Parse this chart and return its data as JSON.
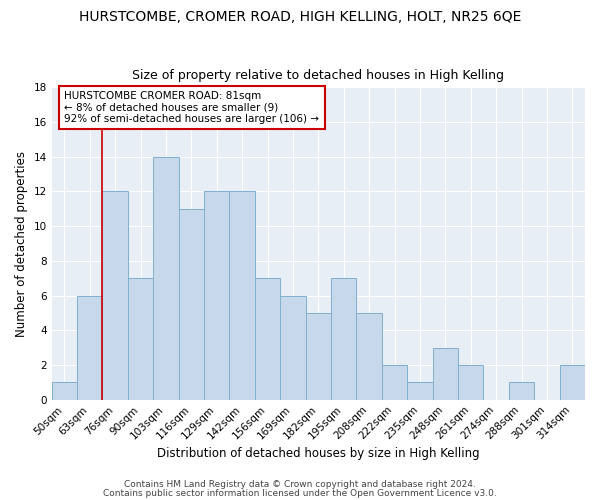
{
  "title": "HURSTCOMBE, CROMER ROAD, HIGH KELLING, HOLT, NR25 6QE",
  "subtitle": "Size of property relative to detached houses in High Kelling",
  "xlabel": "Distribution of detached houses by size in High Kelling",
  "ylabel": "Number of detached properties",
  "categories": [
    "50sqm",
    "63sqm",
    "76sqm",
    "90sqm",
    "103sqm",
    "116sqm",
    "129sqm",
    "142sqm",
    "156sqm",
    "169sqm",
    "182sqm",
    "195sqm",
    "208sqm",
    "222sqm",
    "235sqm",
    "248sqm",
    "261sqm",
    "274sqm",
    "288sqm",
    "301sqm",
    "314sqm"
  ],
  "values": [
    1,
    6,
    12,
    7,
    14,
    11,
    12,
    12,
    7,
    6,
    5,
    7,
    5,
    2,
    1,
    3,
    2,
    0,
    1,
    0,
    2
  ],
  "bar_color": "#c8d8eb",
  "bar_edge_color": "#7fafd0",
  "red_line_x": 2.0,
  "annotation_line1": "HURSTCOMBE CROMER ROAD: 81sqm",
  "annotation_line2": "← 8% of detached houses are smaller (9)",
  "annotation_line3": "92% of semi-detached houses are larger (106) →",
  "annotation_box_color": "white",
  "annotation_box_edge": "#cc0000",
  "ylim": [
    0,
    18
  ],
  "yticks": [
    0,
    2,
    4,
    6,
    8,
    10,
    12,
    14,
    16,
    18
  ],
  "footer1": "Contains HM Land Registry data © Crown copyright and database right 2024.",
  "footer2": "Contains public sector information licensed under the Open Government Licence v3.0.",
  "bg_color": "#ffffff",
  "plot_bg_color": "#e8eef5",
  "grid_color": "#ffffff",
  "title_fontsize": 10,
  "subtitle_fontsize": 9,
  "axis_label_fontsize": 8.5,
  "tick_fontsize": 7.5,
  "annotation_fontsize": 7.5,
  "footer_fontsize": 6.5
}
